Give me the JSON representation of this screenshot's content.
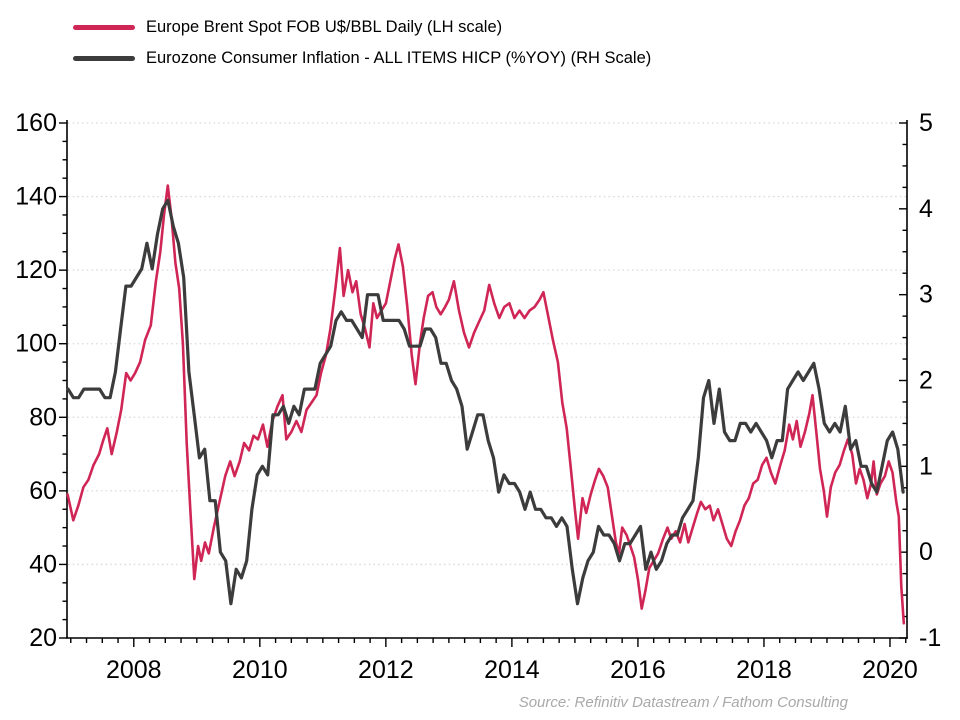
{
  "legend": {
    "items": [
      {
        "label": "Europe Brent Spot FOB U$/BBL Daily (LH scale)"
      },
      {
        "label": "Eurozone Consumer Inflation - ALL ITEMS HICP (%YOY) (RH Scale)"
      }
    ]
  },
  "source_text": "Source: Refinitiv Datastream / Fathom Consulting",
  "colors": {
    "brent": "#d02656",
    "hicp": "#3c3c3c",
    "gridline": "#d8d8d8",
    "axis": "#000000",
    "source_text": "#a9a9a9"
  },
  "chart_data": {
    "type": "line",
    "title": "",
    "x_axis": {
      "range": [
        2006.94,
        2020.27
      ],
      "major_ticks": [
        2008,
        2010,
        2012,
        2014,
        2016,
        2018,
        2020
      ],
      "tick_labels": [
        "2008",
        "2010",
        "2012",
        "2014",
        "2016",
        "2018",
        "2020"
      ],
      "minor_tick_step": 0.25,
      "gridlines": false
    },
    "left_axis": {
      "range": [
        20,
        160
      ],
      "major_ticks": [
        20,
        40,
        60,
        80,
        100,
        120,
        140,
        160
      ],
      "tick_labels": [
        "20",
        "40",
        "60",
        "80",
        "100",
        "120",
        "140",
        "160"
      ],
      "minor_tick_step": 5,
      "gridlines_at": [
        40,
        60,
        80,
        100,
        120,
        140,
        160
      ],
      "grid_style": "dotted"
    },
    "right_axis": {
      "range": [
        -1,
        5
      ],
      "major_ticks": [
        -1,
        0,
        1,
        2,
        3,
        4,
        5
      ],
      "tick_labels": [
        "-1",
        "0",
        "1",
        "2",
        "3",
        "4",
        "5"
      ],
      "minor_tick_step": 0.25
    },
    "legend_position": "top-left",
    "series": [
      {
        "id": "brent",
        "name": "Europe Brent Spot FOB U$/BBL Daily (LH scale)",
        "axis": "left",
        "color": "#d02656",
        "width": 2.6,
        "points": [
          [
            2006.95,
            59
          ],
          [
            2007.04,
            52
          ],
          [
            2007.12,
            56
          ],
          [
            2007.2,
            61
          ],
          [
            2007.28,
            63
          ],
          [
            2007.36,
            67
          ],
          [
            2007.45,
            70
          ],
          [
            2007.52,
            74
          ],
          [
            2007.58,
            77
          ],
          [
            2007.65,
            70
          ],
          [
            2007.73,
            76
          ],
          [
            2007.8,
            82
          ],
          [
            2007.88,
            92
          ],
          [
            2007.95,
            90
          ],
          [
            2008.02,
            92
          ],
          [
            2008.1,
            95
          ],
          [
            2008.18,
            101
          ],
          [
            2008.27,
            105
          ],
          [
            2008.35,
            117
          ],
          [
            2008.42,
            125
          ],
          [
            2008.48,
            135
          ],
          [
            2008.54,
            143
          ],
          [
            2008.6,
            134
          ],
          [
            2008.66,
            122
          ],
          [
            2008.72,
            115
          ],
          [
            2008.78,
            100
          ],
          [
            2008.84,
            73
          ],
          [
            2008.9,
            54
          ],
          [
            2008.96,
            36
          ],
          [
            2009.02,
            45
          ],
          [
            2009.07,
            41
          ],
          [
            2009.13,
            46
          ],
          [
            2009.19,
            43
          ],
          [
            2009.27,
            50
          ],
          [
            2009.36,
            57
          ],
          [
            2009.45,
            64
          ],
          [
            2009.53,
            68
          ],
          [
            2009.6,
            64
          ],
          [
            2009.68,
            68
          ],
          [
            2009.75,
            73
          ],
          [
            2009.83,
            71
          ],
          [
            2009.9,
            75
          ],
          [
            2009.97,
            74
          ],
          [
            2010.05,
            78
          ],
          [
            2010.12,
            72
          ],
          [
            2010.2,
            79
          ],
          [
            2010.28,
            83
          ],
          [
            2010.36,
            86
          ],
          [
            2010.42,
            74
          ],
          [
            2010.5,
            76
          ],
          [
            2010.58,
            79
          ],
          [
            2010.66,
            76
          ],
          [
            2010.74,
            82
          ],
          [
            2010.82,
            84
          ],
          [
            2010.9,
            86
          ],
          [
            2010.97,
            92
          ],
          [
            2011.05,
            97
          ],
          [
            2011.12,
            104
          ],
          [
            2011.2,
            115
          ],
          [
            2011.27,
            126
          ],
          [
            2011.33,
            113
          ],
          [
            2011.4,
            120
          ],
          [
            2011.47,
            114
          ],
          [
            2011.53,
            117
          ],
          [
            2011.6,
            108
          ],
          [
            2011.67,
            104
          ],
          [
            2011.74,
            99
          ],
          [
            2011.8,
            111
          ],
          [
            2011.86,
            107
          ],
          [
            2011.93,
            109
          ],
          [
            2012.0,
            111
          ],
          [
            2012.07,
            117
          ],
          [
            2012.14,
            123
          ],
          [
            2012.2,
            127
          ],
          [
            2012.27,
            121
          ],
          [
            2012.34,
            110
          ],
          [
            2012.41,
            97
          ],
          [
            2012.47,
            89
          ],
          [
            2012.54,
            100
          ],
          [
            2012.6,
            107
          ],
          [
            2012.67,
            113
          ],
          [
            2012.74,
            114
          ],
          [
            2012.8,
            110
          ],
          [
            2012.87,
            108
          ],
          [
            2012.94,
            110
          ],
          [
            2013.0,
            112
          ],
          [
            2013.08,
            117
          ],
          [
            2013.16,
            109
          ],
          [
            2013.24,
            103
          ],
          [
            2013.32,
            99
          ],
          [
            2013.4,
            103
          ],
          [
            2013.48,
            106
          ],
          [
            2013.56,
            109
          ],
          [
            2013.64,
            116
          ],
          [
            2013.72,
            111
          ],
          [
            2013.8,
            107
          ],
          [
            2013.88,
            110
          ],
          [
            2013.96,
            111
          ],
          [
            2014.04,
            107
          ],
          [
            2014.12,
            109
          ],
          [
            2014.2,
            107
          ],
          [
            2014.28,
            109
          ],
          [
            2014.36,
            110
          ],
          [
            2014.44,
            112
          ],
          [
            2014.5,
            114
          ],
          [
            2014.57,
            108
          ],
          [
            2014.65,
            101
          ],
          [
            2014.73,
            95
          ],
          [
            2014.8,
            84
          ],
          [
            2014.87,
            77
          ],
          [
            2014.93,
            67
          ],
          [
            2015.0,
            55
          ],
          [
            2015.05,
            47
          ],
          [
            2015.12,
            58
          ],
          [
            2015.18,
            54
          ],
          [
            2015.25,
            59
          ],
          [
            2015.32,
            63
          ],
          [
            2015.38,
            66
          ],
          [
            2015.45,
            64
          ],
          [
            2015.52,
            61
          ],
          [
            2015.58,
            54
          ],
          [
            2015.65,
            46
          ],
          [
            2015.7,
            43
          ],
          [
            2015.75,
            50
          ],
          [
            2015.82,
            48
          ],
          [
            2015.88,
            45
          ],
          [
            2015.94,
            42
          ],
          [
            2016.0,
            36
          ],
          [
            2016.06,
            28
          ],
          [
            2016.12,
            33
          ],
          [
            2016.18,
            39
          ],
          [
            2016.25,
            41
          ],
          [
            2016.32,
            43
          ],
          [
            2016.4,
            47
          ],
          [
            2016.47,
            50
          ],
          [
            2016.53,
            47
          ],
          [
            2016.6,
            49
          ],
          [
            2016.67,
            46
          ],
          [
            2016.74,
            51
          ],
          [
            2016.8,
            46
          ],
          [
            2016.87,
            50
          ],
          [
            2016.94,
            54
          ],
          [
            2017.0,
            57
          ],
          [
            2017.07,
            55
          ],
          [
            2017.14,
            56
          ],
          [
            2017.2,
            52
          ],
          [
            2017.27,
            55
          ],
          [
            2017.34,
            51
          ],
          [
            2017.41,
            47
          ],
          [
            2017.48,
            45
          ],
          [
            2017.55,
            49
          ],
          [
            2017.62,
            52
          ],
          [
            2017.69,
            56
          ],
          [
            2017.76,
            58
          ],
          [
            2017.83,
            62
          ],
          [
            2017.9,
            63
          ],
          [
            2017.97,
            67
          ],
          [
            2018.04,
            69
          ],
          [
            2018.11,
            65
          ],
          [
            2018.18,
            62
          ],
          [
            2018.26,
            67
          ],
          [
            2018.33,
            71
          ],
          [
            2018.4,
            78
          ],
          [
            2018.46,
            74
          ],
          [
            2018.52,
            79
          ],
          [
            2018.58,
            72
          ],
          [
            2018.65,
            76
          ],
          [
            2018.72,
            81
          ],
          [
            2018.77,
            86
          ],
          [
            2018.83,
            76
          ],
          [
            2018.89,
            66
          ],
          [
            2018.95,
            60
          ],
          [
            2019.0,
            53
          ],
          [
            2019.06,
            61
          ],
          [
            2019.13,
            65
          ],
          [
            2019.2,
            67
          ],
          [
            2019.27,
            71
          ],
          [
            2019.33,
            74
          ],
          [
            2019.4,
            70
          ],
          [
            2019.46,
            62
          ],
          [
            2019.52,
            66
          ],
          [
            2019.58,
            63
          ],
          [
            2019.64,
            58
          ],
          [
            2019.7,
            62
          ],
          [
            2019.74,
            68
          ],
          [
            2019.79,
            59
          ],
          [
            2019.85,
            62
          ],
          [
            2019.92,
            64
          ],
          [
            2019.98,
            68
          ],
          [
            2020.04,
            65
          ],
          [
            2020.1,
            57
          ],
          [
            2020.14,
            53
          ],
          [
            2020.18,
            34
          ],
          [
            2020.22,
            24
          ]
        ]
      },
      {
        "id": "hicp",
        "name": "Eurozone Consumer Inflation - ALL ITEMS HICP (%YOY) (RH Scale)",
        "axis": "right",
        "color": "#3c3c3c",
        "width": 3.2,
        "x_start": 2006.958,
        "x_step": 0.083333,
        "values": [
          1.9,
          1.8,
          1.8,
          1.9,
          1.9,
          1.9,
          1.9,
          1.8,
          1.8,
          2.1,
          2.6,
          3.1,
          3.1,
          3.2,
          3.3,
          3.6,
          3.3,
          3.7,
          4.0,
          4.1,
          3.8,
          3.6,
          3.2,
          2.1,
          1.6,
          1.1,
          1.2,
          0.6,
          0.6,
          0.0,
          -0.1,
          -0.6,
          -0.2,
          -0.3,
          -0.1,
          0.5,
          0.9,
          1.0,
          0.9,
          1.6,
          1.6,
          1.7,
          1.5,
          1.7,
          1.6,
          1.9,
          1.9,
          1.9,
          2.2,
          2.3,
          2.4,
          2.7,
          2.8,
          2.7,
          2.7,
          2.6,
          2.5,
          3.0,
          3.0,
          3.0,
          2.7,
          2.7,
          2.7,
          2.7,
          2.6,
          2.4,
          2.4,
          2.4,
          2.6,
          2.6,
          2.5,
          2.2,
          2.2,
          2.0,
          1.9,
          1.7,
          1.2,
          1.4,
          1.6,
          1.6,
          1.3,
          1.1,
          0.7,
          0.9,
          0.8,
          0.8,
          0.7,
          0.5,
          0.7,
          0.5,
          0.5,
          0.4,
          0.4,
          0.3,
          0.4,
          0.3,
          -0.2,
          -0.6,
          -0.3,
          -0.1,
          0.0,
          0.3,
          0.2,
          0.2,
          0.1,
          -0.1,
          0.1,
          0.1,
          0.2,
          0.3,
          -0.2,
          0.0,
          -0.2,
          -0.1,
          0.1,
          0.2,
          0.2,
          0.4,
          0.5,
          0.6,
          1.1,
          1.8,
          2.0,
          1.5,
          1.9,
          1.4,
          1.3,
          1.3,
          1.5,
          1.5,
          1.4,
          1.5,
          1.4,
          1.3,
          1.1,
          1.3,
          1.3,
          1.9,
          2.0,
          2.1,
          2.0,
          2.1,
          2.2,
          1.9,
          1.5,
          1.4,
          1.5,
          1.4,
          1.7,
          1.2,
          1.3,
          1.0,
          1.0,
          0.8,
          0.7,
          1.0,
          1.3,
          1.4,
          1.2,
          0.7
        ]
      }
    ]
  }
}
